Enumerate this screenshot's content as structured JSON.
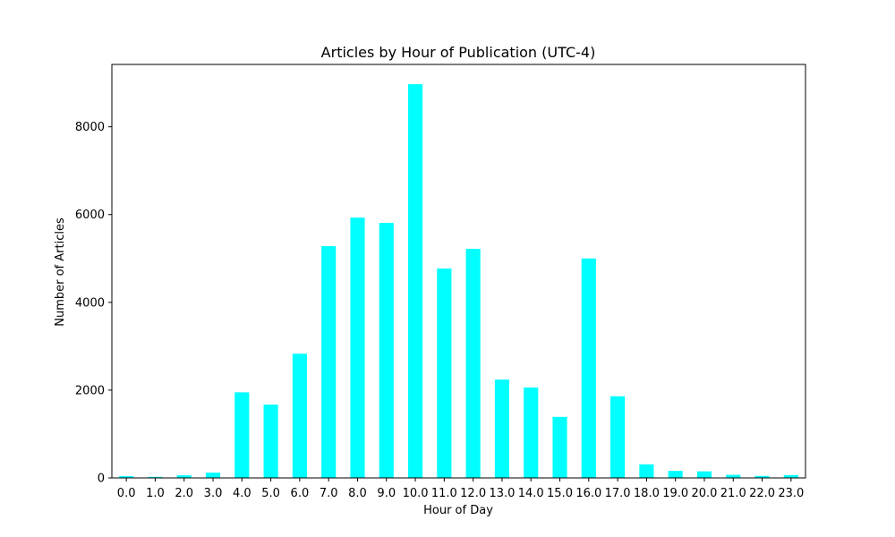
{
  "chart_data": {
    "type": "bar",
    "title": "Articles by Hour of Publication (UTC-4)",
    "xlabel": "Hour of Day",
    "ylabel": "Number of Articles",
    "categories": [
      "0.0",
      "1.0",
      "2.0",
      "3.0",
      "4.0",
      "5.0",
      "6.0",
      "7.0",
      "8.0",
      "9.0",
      "10.0",
      "11.0",
      "12.0",
      "13.0",
      "14.0",
      "15.0",
      "16.0",
      "17.0",
      "18.0",
      "19.0",
      "20.0",
      "21.0",
      "22.0",
      "23.0"
    ],
    "values": [
      40,
      25,
      60,
      120,
      1950,
      1670,
      2830,
      5280,
      5930,
      5810,
      8970,
      4770,
      5220,
      2240,
      2060,
      1390,
      5000,
      1860,
      310,
      160,
      150,
      70,
      45,
      65
    ],
    "yticks": [
      0,
      2000,
      4000,
      6000,
      8000
    ],
    "ylim": [
      0,
      9420
    ],
    "grid": false,
    "bar_color": "#00FFFF"
  }
}
